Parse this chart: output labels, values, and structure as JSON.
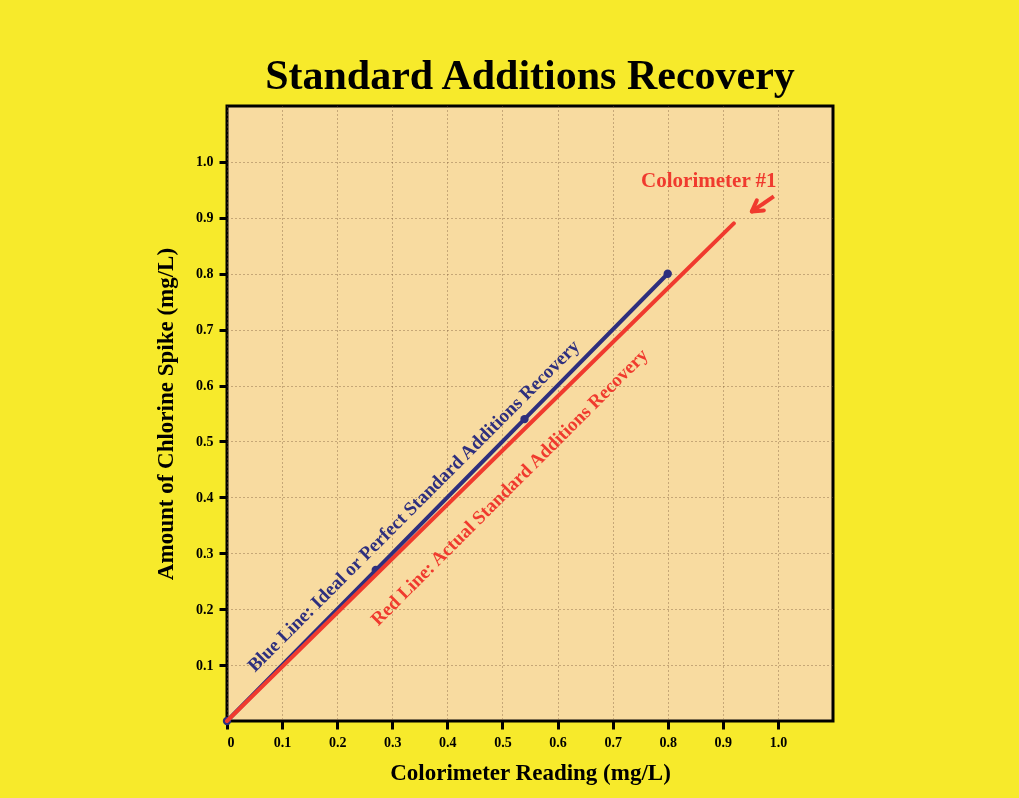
{
  "chart_data": {
    "type": "line",
    "title": "Standard Additions Recovery",
    "xlabel": "Colorimeter Reading (mg/L)",
    "ylabel": "Amount of Chlorine Spike (mg/L)",
    "xlim": [
      0,
      1.1
    ],
    "ylim": [
      0,
      1.1
    ],
    "xticks": [
      0,
      0.1,
      0.2,
      0.3,
      0.4,
      0.5,
      0.6,
      0.7,
      0.8,
      0.9,
      {
        "value": 1,
        "label": "1.0"
      }
    ],
    "yticks": [
      0.1,
      0.2,
      0.3,
      0.4,
      0.5,
      0.6,
      0.7,
      0.8,
      0.9,
      {
        "value": 1,
        "label": "1.0"
      }
    ],
    "grid": true,
    "series": [
      {
        "name": "Blue Line: Ideal or Perfect Standard Additions Recovery",
        "color": "#2e2f7e",
        "marker": "circle",
        "x": [
          0,
          0.27,
          0.54,
          0.8
        ],
        "values": [
          0,
          0.27,
          0.54,
          0.8
        ]
      },
      {
        "name": "Red Line: Actual Standard Additions Recovery",
        "color": "#f03a2e",
        "marker": "none",
        "x": [
          0,
          0.92
        ],
        "values": [
          0,
          0.89
        ]
      }
    ],
    "annotations": [
      {
        "text": "Colorimeter #1",
        "x": 0.92,
        "y": 0.89
      }
    ]
  }
}
